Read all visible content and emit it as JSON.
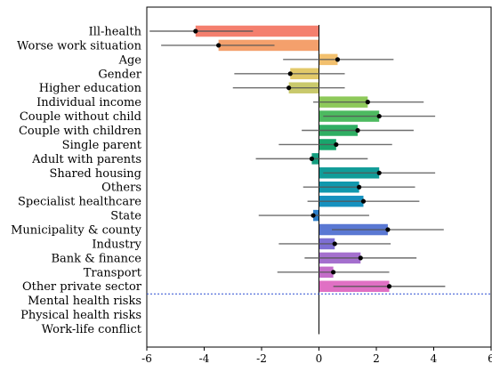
{
  "chart_data": {
    "type": "bar",
    "orientation": "horizontal",
    "title": "",
    "xlabel": "",
    "ylabel": "",
    "xlim": [
      -6,
      6
    ],
    "xticks": [
      -6,
      -4,
      -2,
      0,
      2,
      4,
      6
    ],
    "xtick_labels": [
      "-6",
      "-4",
      "-2",
      "0",
      "2",
      "4",
      "6"
    ],
    "grid": false,
    "zero_line": true,
    "separator_after": "Other private sector",
    "categories": [
      "Ill-health",
      "Worse work situation",
      "Age",
      "Gender",
      "Higher education",
      "Individual income",
      "Couple without child",
      "Couple with children",
      "Single parent",
      "Adult with parents",
      "Shared housing",
      "Others",
      "Specialist healthcare",
      "State",
      "Municipality & county",
      "Industry",
      "Bank & finance",
      "Transport",
      "Other private sector",
      "Mental health risks",
      "Physical health risks",
      "Work-life conflict"
    ],
    "values": [
      -4.3,
      -3.5,
      0.65,
      -1.0,
      -1.05,
      1.7,
      2.1,
      1.35,
      0.6,
      -0.25,
      2.1,
      1.4,
      1.55,
      -0.2,
      2.4,
      0.55,
      1.45,
      0.5,
      2.45,
      null,
      null,
      null
    ],
    "ci_low": [
      -5.9,
      -5.5,
      -1.25,
      -2.95,
      -3.0,
      -0.2,
      0.15,
      -0.6,
      -1.4,
      -2.2,
      0.15,
      -0.55,
      -0.4,
      -2.1,
      0.45,
      -1.4,
      -0.5,
      -1.45,
      0.5,
      null,
      null,
      null
    ],
    "ci_high": [
      -2.3,
      -1.55,
      2.6,
      0.9,
      0.9,
      3.65,
      4.05,
      3.3,
      2.55,
      1.7,
      4.05,
      3.35,
      3.5,
      1.75,
      4.35,
      2.5,
      3.4,
      2.45,
      4.4,
      null,
      null,
      null
    ],
    "colors": [
      "#f47f6e",
      "#f4a06c",
      "#f2c06e",
      "#e2c96a",
      "#c9c96c",
      "#8ec95a",
      "#4dba60",
      "#2fae63",
      "#19a56c",
      "#149e7f",
      "#119c98",
      "#1098ad",
      "#1591bf",
      "#2c7ec9",
      "#5a78d3",
      "#7d6fd3",
      "#a46fce",
      "#c46ec9",
      "#e070c4",
      null,
      null,
      null
    ]
  }
}
